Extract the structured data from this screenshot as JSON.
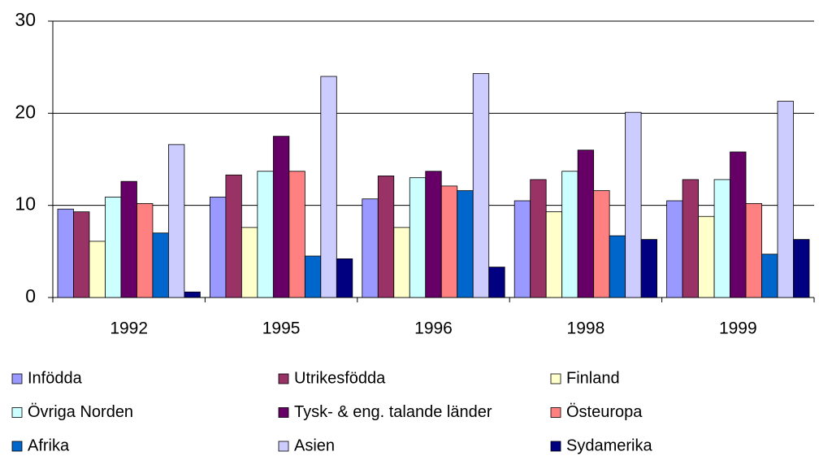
{
  "chart_data": {
    "type": "bar",
    "categories": [
      "1992",
      "1995",
      "1996",
      "1998",
      "1999"
    ],
    "series": [
      {
        "name": "Infödda",
        "color": "#9999ff",
        "values": [
          9.6,
          10.9,
          10.7,
          10.5,
          10.5
        ]
      },
      {
        "name": "Utrikesfödda",
        "color": "#993366",
        "values": [
          9.3,
          13.3,
          13.2,
          12.8,
          12.8
        ]
      },
      {
        "name": "Finland",
        "color": "#ffffcc",
        "values": [
          6.1,
          7.6,
          7.6,
          9.3,
          8.8
        ]
      },
      {
        "name": "Övriga Norden",
        "color": "#ccffff",
        "values": [
          10.9,
          13.7,
          13.0,
          13.7,
          12.8
        ]
      },
      {
        "name": "Tysk- & eng. talande länder",
        "color": "#660066",
        "values": [
          12.6,
          17.5,
          13.7,
          16.0,
          15.8
        ]
      },
      {
        "name": "Östeuropa",
        "color": "#ff8080",
        "values": [
          10.2,
          13.7,
          12.1,
          11.6,
          10.2
        ]
      },
      {
        "name": "Afrika",
        "color": "#0066cc",
        "values": [
          7.0,
          4.5,
          11.6,
          6.7,
          4.7
        ]
      },
      {
        "name": "Asien",
        "color": "#ccccff",
        "values": [
          16.6,
          24.0,
          24.3,
          20.1,
          21.3
        ]
      },
      {
        "name": "Sydamerika",
        "color": "#000080",
        "values": [
          0.6,
          4.2,
          3.3,
          6.3,
          6.3
        ]
      }
    ],
    "ylim": [
      0,
      30
    ],
    "yticks": [
      0,
      10,
      20,
      30
    ],
    "grid": true,
    "legend": "bottom"
  }
}
